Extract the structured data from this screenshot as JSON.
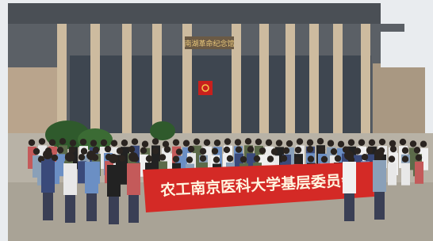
{
  "photo": {
    "building_sign": "南湖革命纪念馆",
    "banner": "农工南京医科大学基层委员会"
  }
}
